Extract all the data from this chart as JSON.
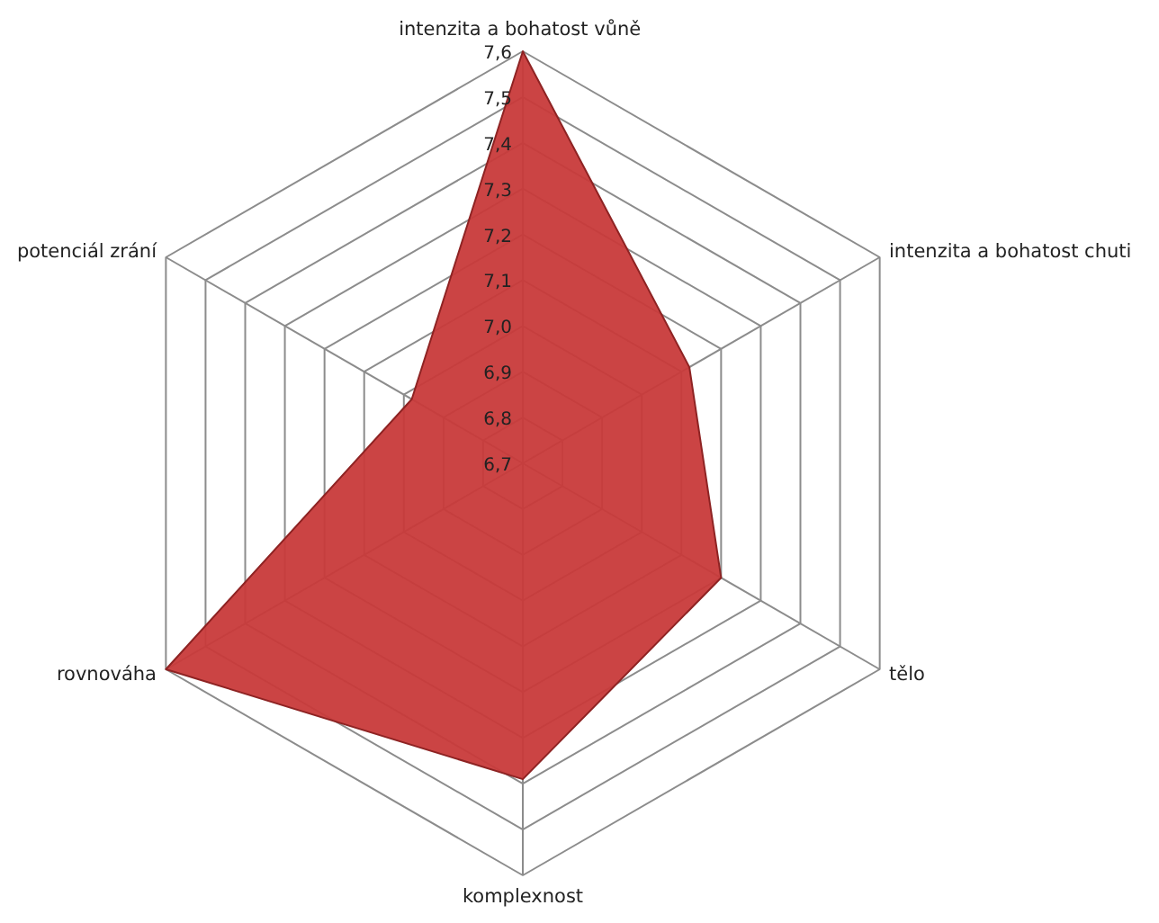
{
  "chart_data": {
    "type": "radar",
    "categories": [
      "intenzita a bohatost  vůně",
      "intenzita a bohatost  chuti",
      "tělo",
      "komplexnost",
      "rovnováha",
      "potenciál zrání"
    ],
    "series": [
      {
        "color": "#c83a3a",
        "values": [
          7.6,
          7.12,
          7.2,
          7.39,
          7.6,
          6.98
        ]
      }
    ],
    "ylim": [
      6.7,
      7.6
    ],
    "yticks": [
      {
        "value": 6.7,
        "label": "6,7"
      },
      {
        "value": 6.8,
        "label": "6,8"
      },
      {
        "value": 6.9,
        "label": "6,9"
      },
      {
        "value": 7.0,
        "label": "7,0"
      },
      {
        "value": 7.1,
        "label": "7,1"
      },
      {
        "value": 7.2,
        "label": "7,2"
      },
      {
        "value": 7.3,
        "label": "7,3"
      },
      {
        "value": 7.4,
        "label": "7,4"
      },
      {
        "value": 7.5,
        "label": "7,5"
      },
      {
        "value": 7.6,
        "label": "7,6"
      }
    ],
    "grid": true
  }
}
